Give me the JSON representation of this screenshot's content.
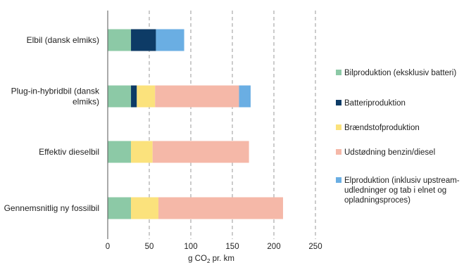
{
  "chart_data": {
    "type": "bar",
    "orientation": "horizontal",
    "stacked": true,
    "categories": [
      [
        "Elbil (dansk elmiks)"
      ],
      [
        "Plug-in-hybridbil (dansk",
        "elmiks)"
      ],
      [
        "Effektiv dieselbil"
      ],
      [
        "Gennemsnitlig ny fossilbil"
      ]
    ],
    "series": [
      {
        "name": [
          "Bilproduktion (eksklusiv batteri)"
        ],
        "color": "#8cc9a6",
        "values": [
          28,
          28,
          28,
          28
        ]
      },
      {
        "name": [
          "Batteriproduktion"
        ],
        "color": "#0d3b66",
        "values": [
          30,
          7,
          0,
          0
        ]
      },
      {
        "name": [
          "Brændstofproduktion"
        ],
        "color": "#fbe27c",
        "values": [
          0,
          22,
          26,
          33
        ]
      },
      {
        "name": [
          "Udstødning benzin/diesel"
        ],
        "color": "#f5b8a8",
        "values": [
          0,
          101,
          116,
          150
        ]
      },
      {
        "name": [
          "Elproduktion (inklusiv upstream-",
          "udledninger og tab i elnet og",
          "opladningsproces)"
        ],
        "color": "#6aaee3",
        "values": [
          34,
          14,
          0,
          0
        ]
      }
    ],
    "x_ticks": [
      "0",
      "50",
      "100",
      "150",
      "200",
      "250"
    ],
    "xlim": [
      0,
      250
    ],
    "xlabel": {
      "main": "g CO",
      "sub": "2",
      "rest": " pr. km"
    },
    "grid": "vertical-dashed",
    "legend_position": "right"
  }
}
